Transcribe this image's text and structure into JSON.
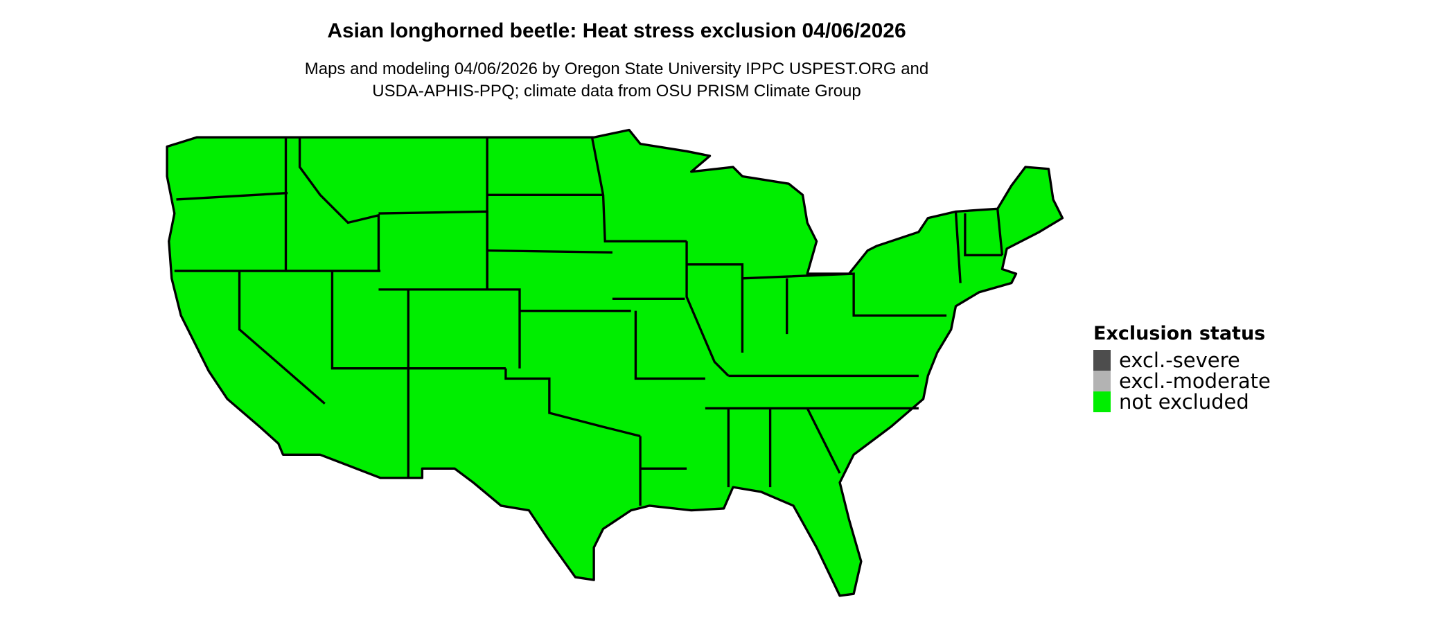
{
  "title": "Asian longhorned beetle: Heat stress exclusion 04/06/2026",
  "subtitle_line1": "Maps and modeling 04/06/2026 by Oregon State University IPPC USPEST.ORG and",
  "subtitle_line2": "USDA-APHIS-PPQ; climate data from OSU PRISM Climate Group",
  "legend": {
    "title": "Exclusion status",
    "items": [
      {
        "label": "excl.-severe",
        "color": "#4d4d4d"
      },
      {
        "label": "excl.-moderate",
        "color": "#b3b3b3"
      },
      {
        "label": "not excluded",
        "color": "#00ee00"
      }
    ]
  },
  "map": {
    "fill": "#00ee00",
    "border": "#000000",
    "status_everywhere": "not excluded"
  }
}
